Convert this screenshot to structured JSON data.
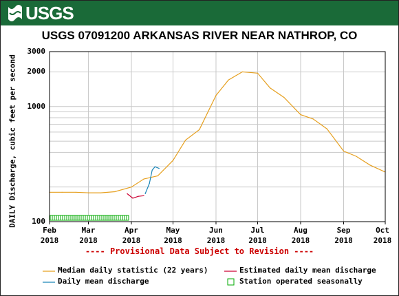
{
  "header": {
    "logo_text": "USGS"
  },
  "chart_data": {
    "type": "line",
    "title": "USGS 07091200 ARKANSAS RIVER NEAR NATHROP, CO",
    "ylabel": "DAILY Discharge, cubic feet per second",
    "yscale": "log",
    "ylim": [
      100,
      3000
    ],
    "y_ticks": [
      {
        "value": 100,
        "label": "100"
      },
      {
        "value": 1000,
        "label": "1000"
      },
      {
        "value": 2000,
        "label": "2000"
      },
      {
        "value": 3000,
        "label": "3000"
      }
    ],
    "x_ticks": [
      {
        "month": "Feb",
        "year": "2018"
      },
      {
        "month": "Mar",
        "year": "2018"
      },
      {
        "month": "Apr",
        "year": "2018"
      },
      {
        "month": "May",
        "year": "2018"
      },
      {
        "month": "Jun",
        "year": "2018"
      },
      {
        "month": "Jul",
        "year": "2018"
      },
      {
        "month": "Aug",
        "year": "2018"
      },
      {
        "month": "Sep",
        "year": "2018"
      },
      {
        "month": "Oct",
        "year": "2018"
      }
    ],
    "grid": true,
    "series": [
      {
        "name": "Median daily statistic (22 years)",
        "color": "#e6a020",
        "x": [
          "2018-02-01",
          "2018-02-10",
          "2018-02-20",
          "2018-03-01",
          "2018-03-10",
          "2018-03-20",
          "2018-04-01",
          "2018-04-10",
          "2018-04-20",
          "2018-05-01",
          "2018-05-10",
          "2018-05-20",
          "2018-06-01",
          "2018-06-10",
          "2018-06-20",
          "2018-07-01",
          "2018-07-10",
          "2018-07-20",
          "2018-08-01",
          "2018-08-10",
          "2018-08-20",
          "2018-09-01",
          "2018-09-10",
          "2018-09-20",
          "2018-10-01"
        ],
        "values": [
          180,
          180,
          180,
          178,
          178,
          182,
          200,
          235,
          250,
          340,
          510,
          630,
          1250,
          1700,
          2000,
          1950,
          1450,
          1200,
          850,
          780,
          640,
          410,
          370,
          310,
          270
        ]
      },
      {
        "name": "Estimated daily mean discharge",
        "color": "#cc0033",
        "x": [
          "2018-03-29",
          "2018-04-02",
          "2018-04-06",
          "2018-04-10"
        ],
        "values": [
          175,
          160,
          166,
          168
        ]
      },
      {
        "name": "Daily mean discharge",
        "color": "#1b86b8",
        "x": [
          "2018-04-11",
          "2018-04-14",
          "2018-04-16",
          "2018-04-18",
          "2018-04-21"
        ],
        "values": [
          175,
          215,
          280,
          300,
          290
        ]
      }
    ],
    "seasonal_box": {
      "name": "Station operated seasonally",
      "color": "#00aa00",
      "x_start": "2018-02-01",
      "x_end": "2018-03-30"
    },
    "annotation": "---- Provisional Data Subject to Revision ----"
  }
}
